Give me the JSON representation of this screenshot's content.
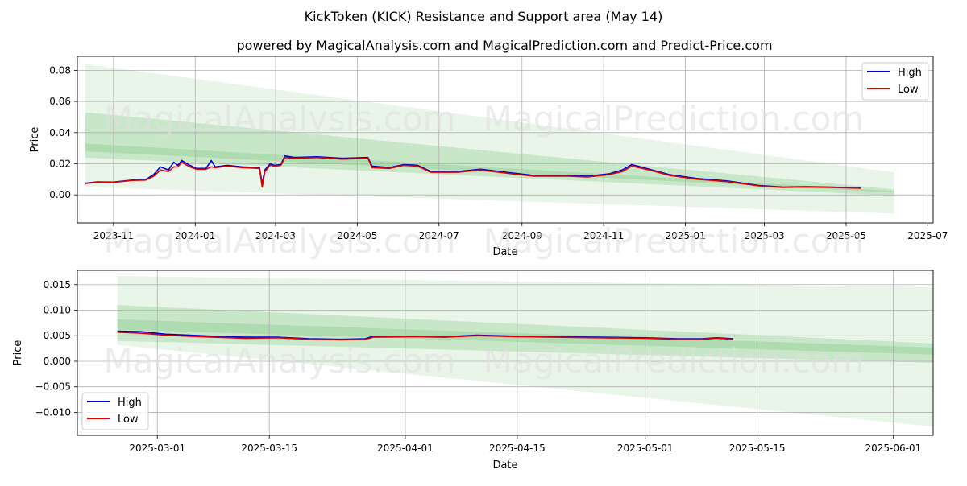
{
  "figure": {
    "title": "KickToken (KICK) Resistance and Support area (May 14)",
    "subtitle": "powered by MagicalAnalysis.com and MagicalPrediction.com and Predict-Price.com",
    "watermark_1": "MagicalAnalysis.com",
    "watermark_2": "MagicalPrediction.com"
  },
  "colors": {
    "high": "#0000cc",
    "low": "#dd0000",
    "band": "#4caf50",
    "grid": "#b0b0b0"
  },
  "chart_data": [
    {
      "type": "line",
      "title": "",
      "xlabel": "Date",
      "ylabel": "Price",
      "x_domain": [
        "2023-10-05",
        "2025-07-05"
      ],
      "ylim": [
        -0.018,
        0.089
      ],
      "xticks": [
        {
          "date": "2023-11-01",
          "label": "2023-11"
        },
        {
          "date": "2024-01-01",
          "label": "2024-01"
        },
        {
          "date": "2024-03-01",
          "label": "2024-03"
        },
        {
          "date": "2024-05-01",
          "label": "2024-05"
        },
        {
          "date": "2024-07-01",
          "label": "2024-07"
        },
        {
          "date": "2024-09-01",
          "label": "2024-09"
        },
        {
          "date": "2024-11-01",
          "label": "2024-11"
        },
        {
          "date": "2025-01-01",
          "label": "2025-01"
        },
        {
          "date": "2025-03-01",
          "label": "2025-03"
        },
        {
          "date": "2025-05-01",
          "label": "2025-05"
        },
        {
          "date": "2025-07-01",
          "label": "2025-07"
        }
      ],
      "yticks": [
        {
          "value": 0.0,
          "label": "0.00"
        },
        {
          "value": 0.02,
          "label": "0.02"
        },
        {
          "value": 0.04,
          "label": "0.04"
        },
        {
          "value": 0.06,
          "label": "0.06"
        },
        {
          "value": 0.08,
          "label": "0.08"
        }
      ],
      "legend": {
        "position": "top-right",
        "entries": [
          "High",
          "Low"
        ]
      },
      "bands": [
        {
          "x0": "2023-10-11",
          "x1": "2025-06-06",
          "upper": [
            0.084,
            0.0145
          ],
          "lower": [
            0.005,
            -0.012
          ],
          "opacity": 0.13
        },
        {
          "x0": "2023-10-11",
          "x1": "2025-06-06",
          "upper": [
            0.053,
            0.0035
          ],
          "lower": [
            0.024,
            -0.0005
          ],
          "opacity": 0.2
        },
        {
          "x0": "2023-10-11",
          "x1": "2025-06-06",
          "upper": [
            0.033,
            0.0025
          ],
          "lower": [
            0.028,
            0.0015
          ],
          "opacity": 0.2
        }
      ],
      "series": [
        {
          "name": "High",
          "points": [
            [
              "2023-10-11",
              0.0075
            ],
            [
              "2023-10-20",
              0.0083
            ],
            [
              "2023-11-01",
              0.0082
            ],
            [
              "2023-11-15",
              0.0095
            ],
            [
              "2023-11-25",
              0.0098
            ],
            [
              "2023-12-01",
              0.013
            ],
            [
              "2023-12-06",
              0.018
            ],
            [
              "2023-12-12",
              0.016
            ],
            [
              "2023-12-16",
              0.021
            ],
            [
              "2023-12-19",
              0.019
            ],
            [
              "2023-12-22",
              0.022
            ],
            [
              "2023-12-28",
              0.019
            ],
            [
              "2024-01-02",
              0.017
            ],
            [
              "2024-01-09",
              0.017
            ],
            [
              "2024-01-13",
              0.022
            ],
            [
              "2024-01-16",
              0.018
            ],
            [
              "2024-01-25",
              0.019
            ],
            [
              "2024-02-05",
              0.018
            ],
            [
              "2024-02-18",
              0.0175
            ],
            [
              "2024-02-20",
              0.007
            ],
            [
              "2024-02-22",
              0.016
            ],
            [
              "2024-02-26",
              0.02
            ],
            [
              "2024-02-29",
              0.019
            ],
            [
              "2024-03-05",
              0.0195
            ],
            [
              "2024-03-08",
              0.025
            ],
            [
              "2024-03-15",
              0.024
            ],
            [
              "2024-04-01",
              0.0245
            ],
            [
              "2024-04-20",
              0.0235
            ],
            [
              "2024-05-09",
              0.024
            ],
            [
              "2024-05-12",
              0.0185
            ],
            [
              "2024-05-25",
              0.0175
            ],
            [
              "2024-06-05",
              0.0195
            ],
            [
              "2024-06-15",
              0.019
            ],
            [
              "2024-06-25",
              0.015
            ],
            [
              "2024-07-15",
              0.015
            ],
            [
              "2024-08-01",
              0.0165
            ],
            [
              "2024-08-20",
              0.0145
            ],
            [
              "2024-09-10",
              0.0125
            ],
            [
              "2024-10-05",
              0.0125
            ],
            [
              "2024-10-20",
              0.012
            ],
            [
              "2024-11-05",
              0.0135
            ],
            [
              "2024-11-15",
              0.016
            ],
            [
              "2024-11-22",
              0.0195
            ],
            [
              "2024-12-05",
              0.0165
            ],
            [
              "2024-12-20",
              0.013
            ],
            [
              "2025-01-10",
              0.0105
            ],
            [
              "2025-02-01",
              0.009
            ],
            [
              "2025-02-25",
              0.006
            ],
            [
              "2025-03-15",
              0.005
            ],
            [
              "2025-04-01",
              0.0052
            ],
            [
              "2025-04-20",
              0.005
            ],
            [
              "2025-05-12",
              0.0045
            ]
          ]
        },
        {
          "name": "Low",
          "points": [
            [
              "2023-10-11",
              0.0073
            ],
            [
              "2023-10-20",
              0.0081
            ],
            [
              "2023-11-01",
              0.008
            ],
            [
              "2023-11-15",
              0.0093
            ],
            [
              "2023-11-25",
              0.0095
            ],
            [
              "2023-12-01",
              0.012
            ],
            [
              "2023-12-06",
              0.016
            ],
            [
              "2023-12-12",
              0.015
            ],
            [
              "2023-12-16",
              0.018
            ],
            [
              "2023-12-19",
              0.018
            ],
            [
              "2023-12-22",
              0.021
            ],
            [
              "2023-12-28",
              0.018
            ],
            [
              "2024-01-02",
              0.0165
            ],
            [
              "2024-01-09",
              0.0165
            ],
            [
              "2024-01-13",
              0.018
            ],
            [
              "2024-01-16",
              0.0175
            ],
            [
              "2024-01-25",
              0.0185
            ],
            [
              "2024-02-05",
              0.0175
            ],
            [
              "2024-02-18",
              0.017
            ],
            [
              "2024-02-20",
              0.005
            ],
            [
              "2024-02-22",
              0.015
            ],
            [
              "2024-02-26",
              0.019
            ],
            [
              "2024-02-29",
              0.0185
            ],
            [
              "2024-03-05",
              0.019
            ],
            [
              "2024-03-08",
              0.024
            ],
            [
              "2024-03-15",
              0.0235
            ],
            [
              "2024-04-01",
              0.024
            ],
            [
              "2024-04-20",
              0.023
            ],
            [
              "2024-05-09",
              0.0235
            ],
            [
              "2024-05-12",
              0.0175
            ],
            [
              "2024-05-25",
              0.017
            ],
            [
              "2024-06-05",
              0.019
            ],
            [
              "2024-06-15",
              0.0185
            ],
            [
              "2024-06-25",
              0.0145
            ],
            [
              "2024-07-15",
              0.0145
            ],
            [
              "2024-08-01",
              0.016
            ],
            [
              "2024-08-20",
              0.014
            ],
            [
              "2024-09-10",
              0.012
            ],
            [
              "2024-10-05",
              0.012
            ],
            [
              "2024-10-20",
              0.0115
            ],
            [
              "2024-11-05",
              0.013
            ],
            [
              "2024-11-15",
              0.015
            ],
            [
              "2024-11-22",
              0.0185
            ],
            [
              "2024-12-05",
              0.016
            ],
            [
              "2024-12-20",
              0.0125
            ],
            [
              "2025-01-10",
              0.01
            ],
            [
              "2025-02-01",
              0.0085
            ],
            [
              "2025-02-25",
              0.0058
            ],
            [
              "2025-03-15",
              0.0048
            ],
            [
              "2025-04-01",
              0.005
            ],
            [
              "2025-04-20",
              0.0048
            ],
            [
              "2025-05-12",
              0.0043
            ]
          ]
        }
      ]
    },
    {
      "type": "line",
      "title": "",
      "xlabel": "Date",
      "ylabel": "Price",
      "x_domain": [
        "2025-02-19",
        "2025-06-06"
      ],
      "ylim": [
        -0.0145,
        0.0178
      ],
      "xticks": [
        {
          "date": "2025-03-01",
          "label": "2025-03-01"
        },
        {
          "date": "2025-03-15",
          "label": "2025-03-15"
        },
        {
          "date": "2025-04-01",
          "label": "2025-04-01"
        },
        {
          "date": "2025-04-15",
          "label": "2025-04-15"
        },
        {
          "date": "2025-05-01",
          "label": "2025-05-01"
        },
        {
          "date": "2025-05-15",
          "label": "2025-05-15"
        },
        {
          "date": "2025-06-01",
          "label": "2025-06-01"
        }
      ],
      "yticks": [
        {
          "value": -0.01,
          "label": "−0.010"
        },
        {
          "value": -0.005,
          "label": "−0.005"
        },
        {
          "value": 0.0,
          "label": "0.000"
        },
        {
          "value": 0.005,
          "label": "0.005"
        },
        {
          "value": 0.01,
          "label": "0.010"
        },
        {
          "value": 0.015,
          "label": "0.015"
        }
      ],
      "legend": {
        "position": "bottom-left",
        "entries": [
          "High",
          "Low"
        ]
      },
      "bands": [
        {
          "x0": "2025-02-24",
          "x1": "2025-06-06",
          "upper": [
            0.0167,
            0.0145
          ],
          "lower": [
            0.0032,
            -0.0128
          ],
          "opacity": 0.13
        },
        {
          "x0": "2025-02-24",
          "x1": "2025-06-06",
          "upper": [
            0.011,
            0.0035
          ],
          "lower": [
            0.004,
            -0.0003
          ],
          "opacity": 0.2
        },
        {
          "x0": "2025-02-24",
          "x1": "2025-06-06",
          "upper": [
            0.0082,
            0.0027
          ],
          "lower": [
            0.0062,
            0.0013
          ],
          "opacity": 0.2
        }
      ],
      "series": [
        {
          "name": "High",
          "points": [
            [
              "2025-02-24",
              0.0059
            ],
            [
              "2025-02-27",
              0.0058
            ],
            [
              "2025-03-02",
              0.0053
            ],
            [
              "2025-03-05",
              0.0051
            ],
            [
              "2025-03-08",
              0.0049
            ],
            [
              "2025-03-12",
              0.0047
            ],
            [
              "2025-03-16",
              0.0047
            ],
            [
              "2025-03-20",
              0.0044
            ],
            [
              "2025-03-24",
              0.0043
            ],
            [
              "2025-03-27",
              0.0044
            ],
            [
              "2025-03-28",
              0.0049
            ],
            [
              "2025-04-02",
              0.0049
            ],
            [
              "2025-04-06",
              0.0048
            ],
            [
              "2025-04-10",
              0.0051
            ],
            [
              "2025-04-15",
              0.0049
            ],
            [
              "2025-04-20",
              0.0048
            ],
            [
              "2025-04-25",
              0.0047
            ],
            [
              "2025-05-01",
              0.0046
            ],
            [
              "2025-05-05",
              0.0044
            ],
            [
              "2025-05-08",
              0.0044
            ],
            [
              "2025-05-10",
              0.0046
            ],
            [
              "2025-05-12",
              0.0044
            ]
          ]
        },
        {
          "name": "Low",
          "points": [
            [
              "2025-02-24",
              0.0057
            ],
            [
              "2025-02-27",
              0.0055
            ],
            [
              "2025-03-02",
              0.0051
            ],
            [
              "2025-03-05",
              0.0049
            ],
            [
              "2025-03-08",
              0.0047
            ],
            [
              "2025-03-12",
              0.0045
            ],
            [
              "2025-03-16",
              0.0046
            ],
            [
              "2025-03-20",
              0.0043
            ],
            [
              "2025-03-24",
              0.0042
            ],
            [
              "2025-03-27",
              0.0043
            ],
            [
              "2025-03-28",
              0.0047
            ],
            [
              "2025-04-02",
              0.0048
            ],
            [
              "2025-04-06",
              0.0047
            ],
            [
              "2025-04-10",
              0.005
            ],
            [
              "2025-04-15",
              0.0048
            ],
            [
              "2025-04-20",
              0.0047
            ],
            [
              "2025-04-25",
              0.0046
            ],
            [
              "2025-05-01",
              0.0045
            ],
            [
              "2025-05-05",
              0.0043
            ],
            [
              "2025-05-08",
              0.0043
            ],
            [
              "2025-05-10",
              0.0045
            ],
            [
              "2025-05-12",
              0.0043
            ]
          ]
        }
      ]
    }
  ]
}
